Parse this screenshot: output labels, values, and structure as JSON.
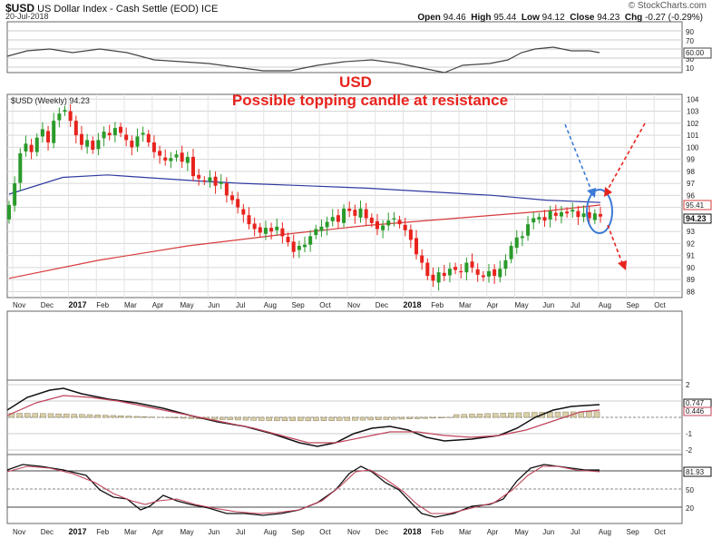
{
  "header": {
    "symbol": "$USD",
    "name": "US Dollar Index - Cash Settle (EOD)",
    "exchange": "ICE",
    "date": "20-Jul-2018",
    "brand": "© StockCharts.com",
    "open_label": "Open",
    "open": "94.46",
    "high_label": "High",
    "high": "95.44",
    "low_label": "Low",
    "low": "94.12",
    "close_label": "Close",
    "close": "94.23",
    "chg_label": "Chg",
    "chg": "-0.27 (-0.29%)"
  },
  "annotation": {
    "title": "USD",
    "subtitle": "Possible topping candle at resistance",
    "color": "#e8231d"
  },
  "chart_data": {
    "type": "candlestick",
    "price_panel": {
      "label": "$USD (Weekly) 94.23",
      "ylim": [
        87.5,
        104.4
      ],
      "yticks": [
        88,
        89,
        90,
        91,
        92,
        93,
        94,
        95,
        96,
        97,
        98,
        99,
        100,
        101,
        102,
        103,
        104
      ],
      "current_value": "94.23",
      "ma_value": "95.41",
      "up_color": "#2a9a2a",
      "down_color": "#e8231d",
      "ma_short_color": "#2f3aa0",
      "ma_long_color": "#d83b3b",
      "weekly_closes": [
        95.2,
        97.0,
        99.5,
        100.3,
        99.6,
        100.8,
        101.5,
        100.4,
        102.2,
        102.8,
        103.1,
        102.2,
        101.0,
        100.2,
        100.6,
        99.8,
        100.6,
        101.3,
        101.0,
        101.6,
        101.2,
        100.6,
        100.0,
        100.9,
        101.2,
        100.4,
        99.6,
        99.3,
        98.9,
        99.1,
        99.4,
        98.8,
        99.2,
        97.6,
        97.4,
        97.2,
        97.5,
        96.8,
        97.1,
        96.0,
        95.6,
        95.0,
        94.4,
        93.6,
        93.2,
        92.9,
        93.3,
        93.0,
        93.4,
        92.6,
        92.1,
        91.3,
        91.8,
        91.9,
        92.6,
        93.2,
        93.4,
        93.8,
        94.2,
        93.8,
        94.9,
        94.7,
        94.3,
        94.9,
        94.1,
        93.7,
        93.2,
        93.5,
        93.9,
        94.1,
        93.6,
        93.1,
        92.3,
        91.1,
        90.4,
        89.3,
        88.9,
        89.6,
        89.3,
        89.9,
        89.8,
        89.6,
        90.4,
        90.0,
        89.4,
        89.2,
        89.7,
        89.3,
        89.9,
        90.6,
        91.8,
        92.5,
        92.6,
        93.6,
        94.1,
        94.2,
        93.9,
        94.7,
        94.3,
        94.6,
        94.5,
        94.8,
        94.2,
        94.5,
        94.1,
        94.5,
        94.23
      ],
      "ma_short": [
        {
          "x": 0,
          "y": 96.1
        },
        {
          "x": 60,
          "y": 97.5
        },
        {
          "x": 110,
          "y": 97.7
        },
        {
          "x": 150,
          "y": 97.5
        },
        {
          "x": 210,
          "y": 97.2
        },
        {
          "x": 260,
          "y": 97.0
        },
        {
          "x": 330,
          "y": 96.8
        },
        {
          "x": 400,
          "y": 96.6
        },
        {
          "x": 470,
          "y": 96.3
        },
        {
          "x": 540,
          "y": 96.0
        },
        {
          "x": 600,
          "y": 95.6
        },
        {
          "x": 661,
          "y": 95.41
        }
      ],
      "ma_long": [
        {
          "x": 0,
          "y": 89.1
        },
        {
          "x": 100,
          "y": 90.6
        },
        {
          "x": 200,
          "y": 91.8
        },
        {
          "x": 300,
          "y": 92.7
        },
        {
          "x": 400,
          "y": 93.5
        },
        {
          "x": 500,
          "y": 94.1
        },
        {
          "x": 600,
          "y": 94.7
        },
        {
          "x": 661,
          "y": 95.2
        }
      ]
    },
    "x_axis_labels": [
      "Nov",
      "Dec",
      "2017",
      "Feb",
      "Mar",
      "Apr",
      "May",
      "Jun",
      "Jul",
      "Aug",
      "Sep",
      "Oct",
      "Nov",
      "Dec",
      "2018",
      "Feb",
      "Mar",
      "Apr",
      "May",
      "Jun",
      "Jul",
      "Aug",
      "Sep",
      "Oct"
    ],
    "bold_x_labels": [
      "2017",
      "2018"
    ],
    "rsi_panel": {
      "yticks": [
        10,
        30,
        50,
        70,
        90
      ],
      "current_value": "60.00"
    },
    "macd_panel": {
      "yticks": [
        2,
        1,
        0,
        -1,
        -2
      ],
      "macd_value": "0.747",
      "signal_value": "0.446"
    },
    "stoch_panel": {
      "yticks": [
        20,
        50,
        80
      ],
      "current_value": "81.93"
    }
  }
}
